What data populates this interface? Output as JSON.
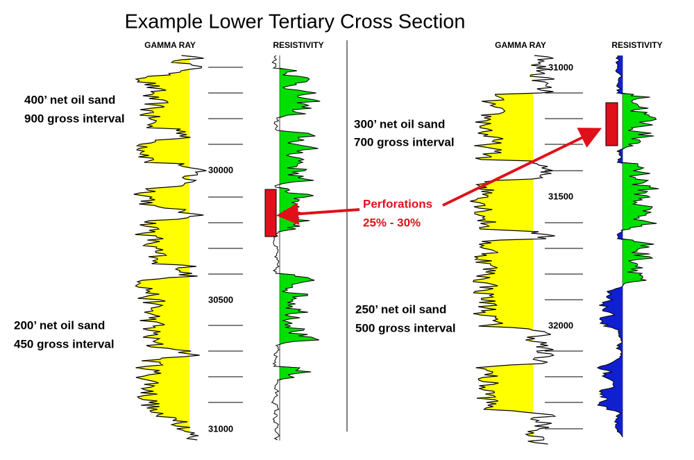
{
  "title": "Example Lower Tertiary Cross Section",
  "wells": [
    {
      "tracks": [
        "GAMMA RAY",
        "RESISTIVITY"
      ],
      "depth_labels": [
        "30000",
        "30500",
        "31000"
      ],
      "annotations": [
        {
          "lines": [
            "400’ net oil sand",
            "900 gross interval"
          ]
        },
        {
          "lines": [
            "200’ net oil sand",
            "450 gross interval"
          ]
        }
      ]
    },
    {
      "tracks": [
        "GAMMA RAY",
        "RESISTIVITY"
      ],
      "depth_labels": [
        "31000",
        "31500",
        "32000"
      ],
      "annotations": [
        {
          "lines": [
            "300’ net oil sand",
            "700 gross interval"
          ]
        },
        {
          "lines": [
            "250’ net oil sand",
            "500 gross interval"
          ]
        }
      ]
    }
  ],
  "callout": {
    "lines": [
      "Perforations",
      "25% - 30%"
    ]
  }
}
